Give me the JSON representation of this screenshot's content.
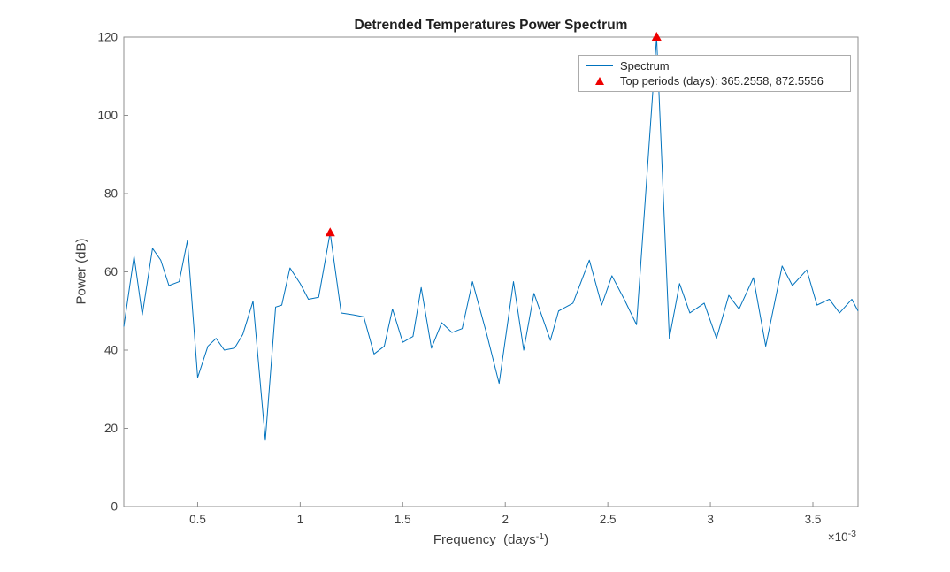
{
  "chart_data": {
    "type": "line",
    "title": "Detrended Temperatures Power Spectrum",
    "ylabel": "Power (dB)",
    "xlabel": {
      "prefix": "Frequency  (days",
      "sup": "-1",
      "suffix": ")"
    },
    "x_multiplier": {
      "prefix": "×10",
      "sup": "-3"
    },
    "x_units": "days^-1, x values in units of 1e-3",
    "xlim": [
      0.14,
      3.72
    ],
    "ylim": [
      0,
      120
    ],
    "xticks": [
      0.5,
      1,
      1.5,
      2,
      2.5,
      3,
      3.5
    ],
    "yticks": [
      0,
      20,
      40,
      60,
      80,
      100,
      120
    ],
    "grid": false,
    "colors": {
      "axis": "#8f8f8f",
      "tick_text": "#3d3d3d",
      "title_text": "#1f1f1f"
    },
    "series": [
      {
        "name": "Spectrum",
        "color": "#0072BD",
        "x": [
          0.14,
          0.19,
          0.23,
          0.28,
          0.32,
          0.36,
          0.41,
          0.45,
          0.5,
          0.55,
          0.59,
          0.63,
          0.68,
          0.72,
          0.77,
          0.83,
          0.88,
          0.91,
          0.95,
          1.0,
          1.04,
          1.09,
          1.146,
          1.2,
          1.26,
          1.31,
          1.36,
          1.41,
          1.45,
          1.5,
          1.55,
          1.59,
          1.64,
          1.69,
          1.74,
          1.79,
          1.84,
          1.91,
          1.97,
          2.04,
          2.09,
          2.14,
          2.22,
          2.26,
          2.33,
          2.41,
          2.47,
          2.52,
          2.58,
          2.64,
          2.738,
          2.8,
          2.85,
          2.9,
          2.97,
          3.03,
          3.09,
          3.14,
          3.21,
          3.27,
          3.35,
          3.4,
          3.47,
          3.52,
          3.58,
          3.63,
          3.69,
          3.72
        ],
        "y": [
          46,
          64,
          49,
          66,
          63,
          56.5,
          57.5,
          68,
          33,
          41,
          43,
          40,
          40.5,
          44,
          52.5,
          17,
          51,
          51.5,
          61,
          57,
          53,
          53.5,
          70,
          49.5,
          49,
          48.5,
          39,
          41,
          50.5,
          42,
          43.5,
          56,
          40.5,
          47,
          44.5,
          45.5,
          57.5,
          44,
          31.5,
          57.5,
          40,
          54.5,
          42.5,
          50,
          52,
          63,
          51.5,
          59,
          53,
          46.5,
          120,
          43,
          57,
          49.5,
          52,
          43,
          54,
          50.5,
          58.5,
          41,
          61.5,
          56.5,
          60.5,
          51.5,
          53,
          49.5,
          53,
          50
        ]
      }
    ],
    "markers": {
      "name": "Top periods",
      "shape": "triangle-up",
      "color": "#ee0000",
      "points": [
        {
          "x": 1.1461,
          "y": 70
        },
        {
          "x": 2.7378,
          "y": 120
        }
      ],
      "top_periods_days": [
        365.2558,
        872.5556
      ]
    },
    "legend": {
      "position": "northeast",
      "entries": [
        {
          "marker": "line",
          "label": "Spectrum"
        },
        {
          "marker": "triangle-up",
          "label": "Top periods (days): 365.2558, 872.5556"
        }
      ]
    }
  }
}
